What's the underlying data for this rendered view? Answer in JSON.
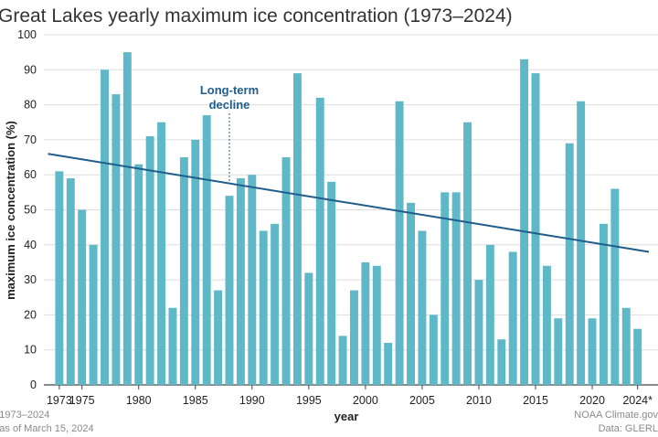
{
  "chart_data": {
    "type": "bar",
    "title": "Great Lakes yearly maximum ice concentration (1973–2024)",
    "xlabel": "year",
    "ylabel": "maximum ice concentration (%)",
    "ylim": [
      0,
      100
    ],
    "yticks": [
      "0",
      "10",
      "20",
      "30",
      "40",
      "50",
      "60",
      "70",
      "80",
      "90",
      "100"
    ],
    "xtick_labels": [
      {
        "year": 1973,
        "label": "1973"
      },
      {
        "year": 1975,
        "label": "1975"
      },
      {
        "year": 1980,
        "label": "1980"
      },
      {
        "year": 1985,
        "label": "1985"
      },
      {
        "year": 1990,
        "label": "1990"
      },
      {
        "year": 1995,
        "label": "1995"
      },
      {
        "year": 2000,
        "label": "2000"
      },
      {
        "year": 2005,
        "label": "2005"
      },
      {
        "year": 2010,
        "label": "2010"
      },
      {
        "year": 2015,
        "label": "2015"
      },
      {
        "year": 2020,
        "label": "2020"
      },
      {
        "year": 2024,
        "label": "2024*"
      }
    ],
    "bar_color": "#5eb8c8",
    "trend_color": "#1f5d8c",
    "grid": true,
    "series": [
      {
        "x": [
          1973,
          1974,
          1975,
          1976,
          1977,
          1978,
          1979,
          1980,
          1981,
          1982,
          1983,
          1984,
          1985,
          1986,
          1987,
          1988,
          1989,
          1990,
          1991,
          1992,
          1993,
          1994,
          1995,
          1996,
          1997,
          1998,
          1999,
          2000,
          2001,
          2002,
          2003,
          2004,
          2005,
          2006,
          2007,
          2008,
          2009,
          2010,
          2011,
          2012,
          2013,
          2014,
          2015,
          2016,
          2017,
          2018,
          2019,
          2020,
          2021,
          2022,
          2023,
          2024
        ],
        "values": [
          61,
          59,
          50,
          40,
          90,
          83,
          95,
          63,
          71,
          75,
          22,
          65,
          70,
          77,
          27,
          54,
          59,
          60,
          44,
          46,
          65,
          89,
          32,
          82,
          58,
          14,
          27,
          35,
          34,
          12,
          81,
          52,
          44,
          20,
          55,
          55,
          75,
          30,
          40,
          13,
          38,
          93,
          89,
          34,
          19,
          69,
          81,
          19,
          46,
          56,
          22,
          16
        ]
      }
    ],
    "trend": {
      "label_line1": "Long-term",
      "label_line2": "decline",
      "label_year": 1988,
      "start": [
        1972,
        66
      ],
      "end": [
        2025,
        38
      ]
    },
    "footnote_left": [
      "*1973–2024",
      "*as of March 15, 2024"
    ],
    "footnote_right": [
      "NOAA Climate.gov",
      "Data: GLERL"
    ]
  }
}
